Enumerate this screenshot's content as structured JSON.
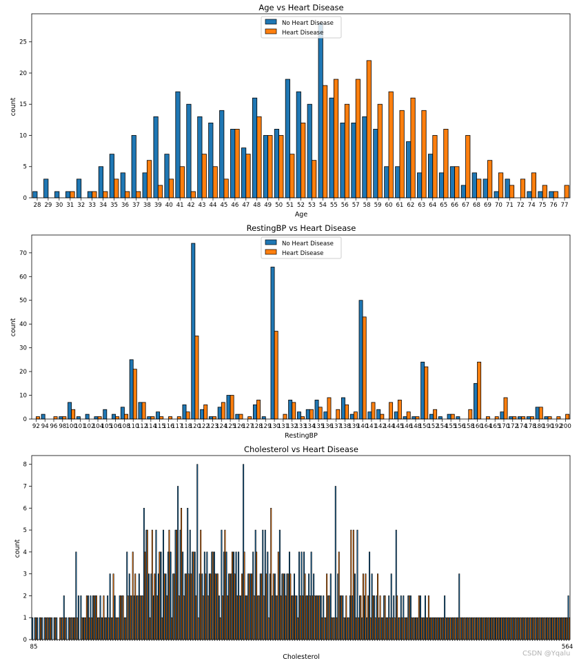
{
  "colors": {
    "no": "#1f77b4",
    "yes": "#ff7f0e",
    "edge": "#000000",
    "frame": "#000000"
  },
  "watermark": "CSDN @Yqalu",
  "chart_data": [
    {
      "type": "bar",
      "title": "Age vs Heart Disease",
      "xlabel": "Age",
      "ylabel": "count",
      "ylim": [
        0,
        29.5
      ],
      "yticks": [
        0,
        5,
        10,
        15,
        20,
        25
      ],
      "legend": [
        "No Heart Disease",
        "Heart Disease"
      ],
      "legend_position": "top-center",
      "categories": [
        "28",
        "29",
        "30",
        "31",
        "32",
        "33",
        "34",
        "35",
        "36",
        "37",
        "38",
        "39",
        "40",
        "41",
        "42",
        "43",
        "44",
        "45",
        "46",
        "47",
        "48",
        "49",
        "50",
        "51",
        "52",
        "53",
        "54",
        "55",
        "56",
        "57",
        "58",
        "59",
        "60",
        "61",
        "62",
        "63",
        "64",
        "65",
        "66",
        "67",
        "68",
        "69",
        "70",
        "71",
        "72",
        "74",
        "75",
        "76",
        "77"
      ],
      "series": [
        {
          "name": "No Heart Disease",
          "values": [
            1,
            3,
            1,
            1,
            3,
            1,
            5,
            7,
            4,
            10,
            4,
            13,
            7,
            17,
            15,
            13,
            12,
            14,
            11,
            8,
            16,
            10,
            11,
            19,
            17,
            15,
            28,
            16,
            12,
            12,
            13,
            11,
            5,
            5,
            9,
            4,
            7,
            4,
            5,
            2,
            4,
            3,
            1,
            3,
            0,
            1,
            1,
            1,
            0
          ]
        },
        {
          "name": "Heart Disease",
          "values": [
            0,
            0,
            0,
            1,
            0,
            1,
            1,
            3,
            1,
            1,
            6,
            2,
            3,
            5,
            1,
            7,
            5,
            3,
            11,
            7,
            13,
            10,
            10,
            7,
            12,
            6,
            18,
            19,
            15,
            19,
            22,
            15,
            17,
            14,
            16,
            14,
            10,
            11,
            5,
            10,
            3,
            6,
            4,
            2,
            3,
            4,
            2,
            1,
            2
          ]
        }
      ]
    },
    {
      "type": "bar",
      "title": "RestingBP vs Heart Disease",
      "xlabel": "RestingBP",
      "ylabel": "count",
      "ylim": [
        0,
        77.5
      ],
      "yticks": [
        0,
        10,
        20,
        30,
        40,
        50,
        60,
        70
      ],
      "legend": [
        "No Heart Disease",
        "Heart Disease"
      ],
      "legend_position": "top-center",
      "categories": [
        "92",
        "94",
        "96",
        "98",
        "100",
        "101",
        "102",
        "104",
        "105",
        "106",
        "108",
        "110",
        "112",
        "114",
        "115",
        "116",
        "117",
        "118",
        "120",
        "122",
        "123",
        "124",
        "125",
        "126",
        "127",
        "128",
        "129",
        "130",
        "131",
        "132",
        "133",
        "134",
        "135",
        "136",
        "137",
        "138",
        "139",
        "140",
        "141",
        "142",
        "144",
        "145",
        "146",
        "148",
        "150",
        "152",
        "154",
        "155",
        "156",
        "158",
        "160",
        "164",
        "165",
        "170",
        "172",
        "174",
        "178",
        "180",
        "190",
        "192",
        "200"
      ],
      "series": [
        {
          "name": "No Heart Disease",
          "values": [
            0,
            2,
            0,
            1,
            7,
            1,
            2,
            1,
            4,
            2,
            5,
            25,
            7,
            1,
            3,
            0,
            0,
            6,
            74,
            4,
            1,
            5,
            10,
            2,
            0,
            6,
            1,
            64,
            0,
            8,
            3,
            4,
            8,
            3,
            0,
            9,
            2,
            50,
            3,
            4,
            0,
            3,
            1,
            1,
            24,
            2,
            1,
            2,
            1,
            0,
            15,
            0,
            0,
            3,
            1,
            1,
            1,
            5,
            1,
            0,
            0
          ]
        },
        {
          "name": "Heart Disease",
          "values": [
            1,
            0,
            1,
            1,
            4,
            0,
            0,
            1,
            0,
            1,
            2,
            21,
            7,
            1,
            1,
            1,
            1,
            3,
            35,
            6,
            1,
            7,
            10,
            2,
            1,
            8,
            0,
            37,
            2,
            7,
            1,
            4,
            5,
            9,
            4,
            6,
            3,
            43,
            7,
            2,
            7,
            8,
            3,
            1,
            22,
            4,
            0,
            2,
            0,
            4,
            24,
            1,
            1,
            9,
            1,
            1,
            1,
            5,
            1,
            1,
            2
          ]
        }
      ]
    },
    {
      "type": "bar",
      "title": "Cholesterol vs Heart Disease",
      "xlabel": "Cholesterol",
      "ylabel": "count",
      "ylim": [
        0,
        8.4
      ],
      "yticks": [
        0,
        1,
        2,
        3,
        4,
        5,
        6,
        7,
        8
      ],
      "legend": [
        "No Heart Disease",
        "Heart Disease"
      ],
      "legend_position": "top-center",
      "first_tick": "85",
      "last_tick": "564",
      "categories_count": 222,
      "series": [
        {
          "name": "No Heart Disease",
          "values": [
            1,
            1,
            1,
            1,
            1,
            1,
            1,
            1,
            1,
            1,
            1,
            0,
            1,
            2,
            1,
            1,
            1,
            1,
            4,
            2,
            2,
            1,
            1,
            2,
            2,
            2,
            2,
            1,
            2,
            1,
            1,
            2,
            3,
            1,
            2,
            1,
            2,
            2,
            1,
            4,
            3,
            2,
            2,
            2,
            3,
            2,
            6,
            5,
            3,
            3,
            2,
            5,
            3,
            4,
            5,
            3,
            4,
            4,
            3,
            5,
            7,
            5,
            4,
            3,
            6,
            5,
            4,
            4,
            8,
            3,
            3,
            4,
            4,
            3,
            4,
            4,
            3,
            2,
            5,
            4,
            4,
            3,
            3,
            4,
            4,
            4,
            2,
            8,
            2,
            3,
            3,
            4,
            5,
            2,
            3,
            5,
            5,
            4,
            3,
            2,
            3,
            2,
            5,
            3,
            3,
            3,
            4,
            2,
            3,
            2,
            4,
            4,
            4,
            2,
            3,
            4,
            3,
            2,
            2,
            2,
            2,
            1,
            2,
            3,
            1,
            7,
            3,
            2,
            2,
            1,
            1,
            2,
            2,
            3,
            5,
            2,
            1,
            2,
            1,
            4,
            3,
            2,
            2,
            1,
            1,
            2,
            1,
            2,
            3,
            2,
            5,
            1,
            2,
            2,
            1,
            2,
            2,
            1,
            1,
            1,
            2,
            1,
            2,
            1,
            1,
            1,
            1,
            1,
            1,
            1,
            2,
            1,
            1,
            1,
            1,
            1,
            3,
            1,
            1,
            1,
            1,
            1,
            1,
            1,
            1,
            1,
            1,
            1,
            1,
            1,
            1,
            1,
            1,
            1,
            1,
            1,
            1,
            1,
            1,
            1,
            1,
            1,
            1,
            1,
            1,
            1,
            1,
            1,
            1,
            1,
            1,
            1,
            1,
            1,
            1,
            1,
            1,
            1,
            1,
            1,
            1,
            2
          ]
        },
        {
          "name": "Heart Disease",
          "values": [
            0,
            1,
            0,
            1,
            0,
            1,
            1,
            1,
            0,
            1,
            0,
            1,
            1,
            1,
            0,
            1,
            1,
            1,
            1,
            0,
            1,
            1,
            2,
            1,
            1,
            2,
            2,
            1,
            1,
            2,
            1,
            1,
            1,
            3,
            1,
            1,
            2,
            2,
            1,
            2,
            2,
            4,
            3,
            2,
            2,
            2,
            4,
            5,
            1,
            5,
            3,
            2,
            4,
            1,
            3,
            2,
            5,
            1,
            3,
            5,
            2,
            6,
            2,
            3,
            3,
            3,
            4,
            2,
            1,
            5,
            2,
            3,
            2,
            3,
            4,
            3,
            3,
            1,
            2,
            5,
            2,
            3,
            4,
            3,
            2,
            2,
            3,
            4,
            2,
            3,
            3,
            2,
            4,
            2,
            3,
            2,
            3,
            1,
            6,
            3,
            2,
            4,
            2,
            3,
            2,
            3,
            3,
            2,
            2,
            1,
            2,
            2,
            3,
            2,
            2,
            2,
            2,
            2,
            2,
            1,
            1,
            3,
            2,
            1,
            1,
            1,
            4,
            2,
            1,
            2,
            1,
            5,
            5,
            1,
            1,
            2,
            3,
            3,
            2,
            1,
            2,
            1,
            3,
            2,
            1,
            2,
            1,
            1,
            1,
            1,
            2,
            1,
            1,
            1,
            1,
            2,
            1,
            1,
            1,
            2,
            1,
            1,
            1,
            2,
            1,
            1,
            1,
            1,
            1,
            1,
            1,
            1,
            1,
            1,
            1,
            1,
            1,
            1,
            1,
            1,
            1,
            1,
            1,
            1,
            1,
            1,
            1,
            1,
            1,
            1,
            1,
            1,
            1,
            1,
            1,
            1,
            1,
            1,
            1,
            1,
            1,
            1,
            1,
            1,
            1,
            1,
            1,
            1,
            1,
            1,
            1,
            1,
            1,
            1,
            1,
            1,
            1,
            1,
            1,
            1,
            1,
            1
          ]
        }
      ]
    }
  ]
}
